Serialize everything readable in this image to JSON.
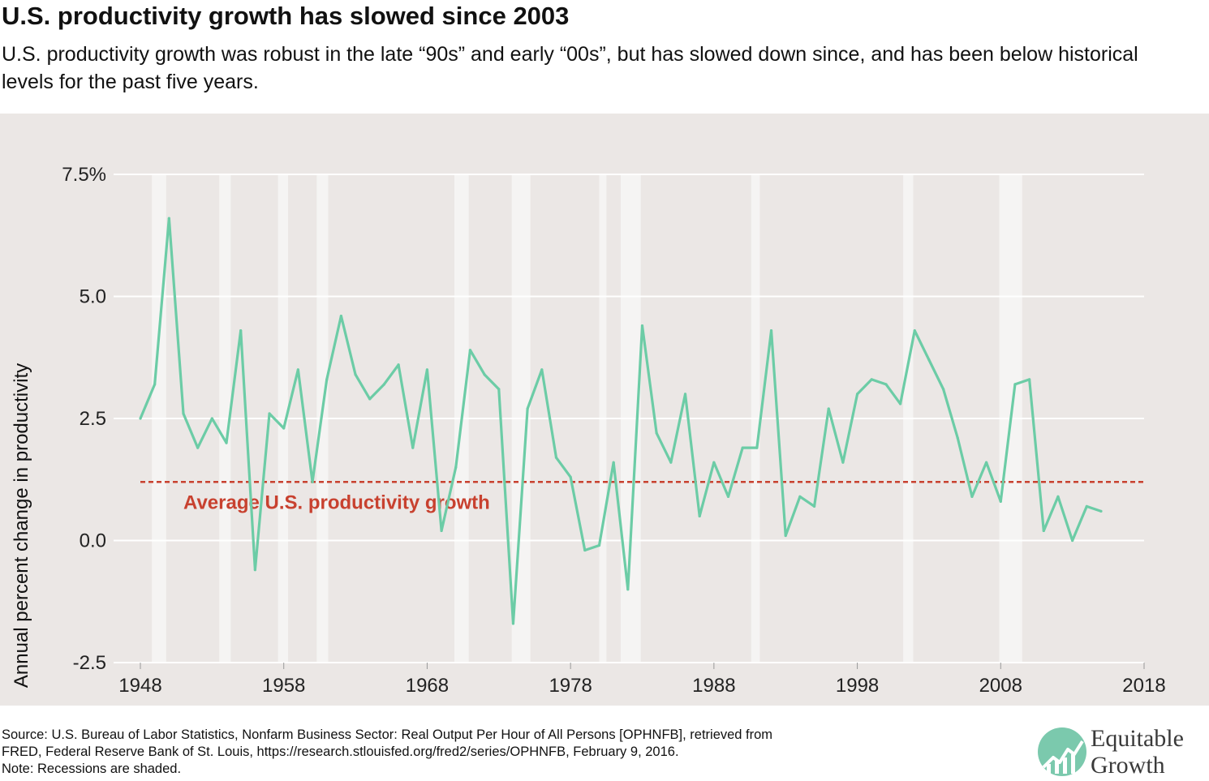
{
  "title": "U.S. productivity growth has slowed since 2003",
  "subtitle": "U.S. productivity growth was robust in the late “90s” and early “00s”, but has slowed down since, and has been below historical levels for the past five years.",
  "source_lines": [
    "Source: U.S. Bureau of Labor Statistics, Nonfarm Business Sector: Real Output Per Hour of All Persons [OPHNFB], retrieved from",
    "FRED, Federal Reserve Bank of St. Louis, https://research.stlouisfed.org/fred2/series/OPHNFB, February 9, 2016.",
    "Note: Recessions are shaded."
  ],
  "logo": {
    "line1": "Equitable",
    "line2": "Growth",
    "icon": "growth-chart-icon"
  },
  "colors": {
    "series": "#6ccca6",
    "average": "#c8412f",
    "panel": "#ebe7e5",
    "grid": "#ffffff",
    "recession": "#f5f4f3"
  },
  "chart_data": {
    "type": "line",
    "title": "U.S. productivity growth has slowed since 2003",
    "ylabel": "Annual percent change in productivity",
    "xlabel": "",
    "xlim": [
      1948,
      2018
    ],
    "ylim": [
      -2.5,
      7.5
    ],
    "x_ticks": [
      1948,
      1958,
      1968,
      1978,
      1988,
      1998,
      2008,
      2018
    ],
    "x_tick_labels": [
      "1948",
      "1958",
      "1968",
      "1978",
      "1988",
      "1998",
      "2008",
      "2018"
    ],
    "y_ticks": [
      -2.5,
      0,
      2.5,
      5,
      7.5
    ],
    "y_tick_labels": [
      "-2.5",
      "0.0",
      "2.5",
      "5.0",
      "7.5%"
    ],
    "grid": true,
    "series": [
      {
        "x": [
          1948,
          1949,
          1950,
          1951,
          1952,
          1953,
          1954,
          1955,
          1956,
          1957,
          1958,
          1959,
          1960,
          1961,
          1962,
          1963,
          1964,
          1965,
          1966,
          1967,
          1968,
          1969,
          1970,
          1971,
          1972,
          1973,
          1974,
          1975,
          1976,
          1977,
          1978,
          1979,
          1980,
          1981,
          1982,
          1983,
          1984,
          1985,
          1986,
          1987,
          1988,
          1989,
          1990,
          1991,
          1992,
          1993,
          1994,
          1995,
          1996,
          1997,
          1998,
          1999,
          2000,
          2001,
          2002,
          2003,
          2004,
          2005,
          2006,
          2007,
          2008,
          2009,
          2010,
          2011,
          2012,
          2013,
          2014,
          2015
        ],
        "values": [
          2.5,
          3.2,
          6.6,
          2.6,
          1.9,
          2.5,
          2.0,
          4.3,
          -0.6,
          2.6,
          2.3,
          3.5,
          1.2,
          3.3,
          4.6,
          3.4,
          2.9,
          3.2,
          3.6,
          1.9,
          3.5,
          0.2,
          1.5,
          3.9,
          3.4,
          3.1,
          -1.7,
          2.7,
          3.5,
          1.7,
          1.3,
          -0.2,
          -0.1,
          1.6,
          -1.0,
          4.4,
          2.2,
          1.6,
          3.0,
          0.5,
          1.6,
          0.9,
          1.9,
          1.9,
          4.3,
          0.1,
          0.9,
          0.7,
          2.7,
          1.6,
          3.0,
          3.3,
          3.2,
          2.8,
          4.3,
          3.7,
          3.1,
          2.1,
          0.9,
          1.6,
          0.8,
          3.2,
          3.3,
          0.2,
          0.9,
          0.0,
          0.7,
          0.6
        ]
      }
    ],
    "average_line": {
      "value": 1.2,
      "label": "Average U.S. productivity growth"
    },
    "recessions": [
      [
        1948.8,
        1949.8
      ],
      [
        1953.5,
        1954.3
      ],
      [
        1957.6,
        1958.3
      ],
      [
        1960.3,
        1961.1
      ],
      [
        1969.9,
        1970.9
      ],
      [
        1973.9,
        1975.2
      ],
      [
        1980.0,
        1980.5
      ],
      [
        1981.5,
        1982.9
      ],
      [
        1990.6,
        1991.2
      ],
      [
        2001.2,
        2001.9
      ],
      [
        2007.9,
        2009.5
      ]
    ]
  }
}
